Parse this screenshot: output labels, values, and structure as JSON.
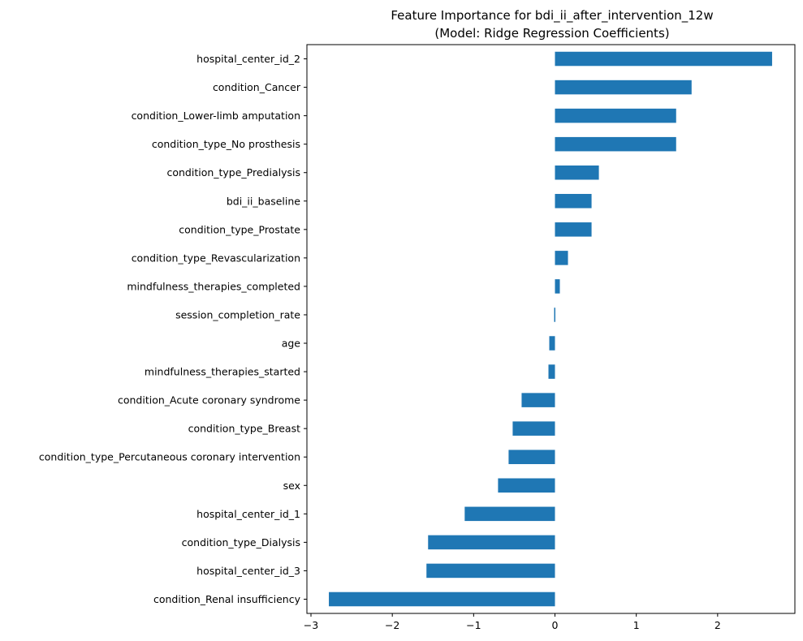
{
  "chart_data": {
    "type": "bar",
    "orientation": "horizontal",
    "title": "Feature Importance for bdi_ii_after_intervention_12w",
    "subtitle": "(Model: Ridge Regression Coefficients)",
    "xlabel": "",
    "ylabel": "",
    "xlim": [
      -3.05,
      2.95
    ],
    "xticks": [
      -3,
      -2,
      -1,
      0,
      1,
      2
    ],
    "xtick_labels": [
      "−3",
      "−2",
      "−1",
      "0",
      "1",
      "2"
    ],
    "grid": false,
    "bar_color": "#1f77b4",
    "categories": [
      "hospital_center_id_2",
      "condition_Cancer",
      "condition_Lower-limb amputation",
      "condition_type_No prosthesis",
      "condition_type_Predialysis",
      "bdi_ii_baseline",
      "condition_type_Prostate",
      "condition_type_Revascularization",
      "mindfulness_therapies_completed",
      "session_completion_rate",
      "age",
      "mindfulness_therapies_started",
      "condition_Acute coronary syndrome",
      "condition_type_Breast",
      "condition_type_Percutaneous coronary intervention",
      "sex",
      "hospital_center_id_1",
      "condition_type_Dialysis",
      "hospital_center_id_3",
      "condition_Renal insufficiency"
    ],
    "values": [
      2.67,
      1.68,
      1.49,
      1.49,
      0.54,
      0.45,
      0.45,
      0.16,
      0.06,
      -0.01,
      -0.07,
      -0.08,
      -0.41,
      -0.52,
      -0.57,
      -0.7,
      -1.11,
      -1.56,
      -1.58,
      -2.78
    ]
  }
}
